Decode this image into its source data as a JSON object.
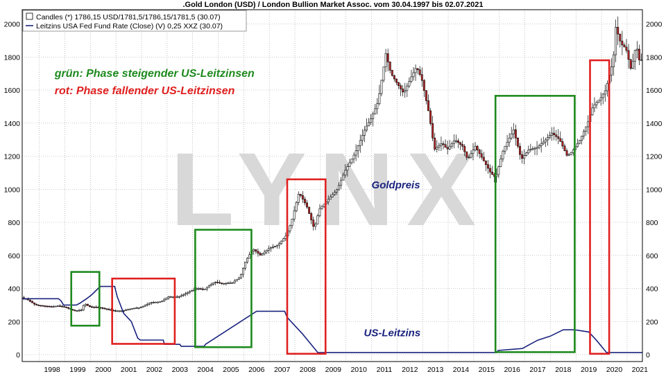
{
  "window": {
    "title": ".Gold London (USD) / London Bullion Market Assoc. vom 30.04.1997 bis 02.07.2021"
  },
  "colors": {
    "up_candle": "#ffffff",
    "down_candle": "#c0282a",
    "rate_line": "#1a237e",
    "rising_phase": "#1e8a1e",
    "falling_phase": "#e02020",
    "watermark": "#d8d8d8",
    "grid": "#999999"
  },
  "chart_data": {
    "type": "line",
    "title": ".Gold London (USD) / London Bullion Market Assoc. vom 30.04.1997 bis 02.07.2021",
    "x_range": [
      1997.33,
      2021.6
    ],
    "ylim": [
      0,
      2000
    ],
    "y_ticks": [
      0,
      200,
      400,
      600,
      800,
      1000,
      1200,
      1400,
      1600,
      1800,
      2000
    ],
    "x_ticks": [
      1998,
      1999,
      2000,
      2001,
      2002,
      2003,
      2004,
      2005,
      2006,
      2007,
      2008,
      2009,
      2010,
      2011,
      2012,
      2013,
      2014,
      2015,
      2016,
      2017,
      2018,
      2019,
      2020,
      2021
    ],
    "grid": true,
    "legend_position": "top-left",
    "legend": [
      {
        "label": "Candles (*) 1786,15 USD/1781,5/1786,15/1781,5 (30.07)",
        "icon": "candle-box"
      },
      {
        "label": "Leitzins USA Fed Fund Rate (Close) (V) 0,25 XXZ (30.07)",
        "icon": "line"
      }
    ],
    "watermark": "LYNX",
    "series": [
      {
        "name": "Candles (*) 1786,15 USD/1781,5/1786,15/1781,5 (30.07)",
        "kind": "candles",
        "points": [
          [
            1997.35,
            345
          ],
          [
            1997.6,
            330
          ],
          [
            1997.9,
            300
          ],
          [
            1998.2,
            295
          ],
          [
            1998.5,
            290
          ],
          [
            1998.8,
            295
          ],
          [
            1999.1,
            285
          ],
          [
            1999.4,
            265
          ],
          [
            1999.7,
            270
          ],
          [
            1999.8,
            310
          ],
          [
            2000.0,
            290
          ],
          [
            2000.4,
            285
          ],
          [
            2000.8,
            270
          ],
          [
            2001.0,
            265
          ],
          [
            2001.3,
            265
          ],
          [
            2001.7,
            280
          ],
          [
            2002.0,
            285
          ],
          [
            2002.4,
            315
          ],
          [
            2002.8,
            320
          ],
          [
            2003.1,
            350
          ],
          [
            2003.5,
            350
          ],
          [
            2003.9,
            380
          ],
          [
            2004.2,
            400
          ],
          [
            2004.5,
            395
          ],
          [
            2004.9,
            440
          ],
          [
            2005.2,
            430
          ],
          [
            2005.6,
            435
          ],
          [
            2005.9,
            470
          ],
          [
            2006.1,
            560
          ],
          [
            2006.4,
            640
          ],
          [
            2006.7,
            600
          ],
          [
            2007.0,
            640
          ],
          [
            2007.4,
            665
          ],
          [
            2007.7,
            720
          ],
          [
            2007.9,
            800
          ],
          [
            2008.2,
            980
          ],
          [
            2008.5,
            900
          ],
          [
            2008.8,
            760
          ],
          [
            2009.0,
            880
          ],
          [
            2009.3,
            930
          ],
          [
            2009.7,
            1000
          ],
          [
            2010.0,
            1110
          ],
          [
            2010.4,
            1220
          ],
          [
            2010.8,
            1370
          ],
          [
            2011.0,
            1420
          ],
          [
            2011.3,
            1530
          ],
          [
            2011.6,
            1820
          ],
          [
            2011.8,
            1700
          ],
          [
            2012.0,
            1650
          ],
          [
            2012.3,
            1580
          ],
          [
            2012.6,
            1680
          ],
          [
            2012.8,
            1740
          ],
          [
            2013.0,
            1670
          ],
          [
            2013.3,
            1450
          ],
          [
            2013.5,
            1240
          ],
          [
            2013.8,
            1280
          ],
          [
            2014.0,
            1240
          ],
          [
            2014.3,
            1300
          ],
          [
            2014.6,
            1260
          ],
          [
            2014.8,
            1180
          ],
          [
            2015.1,
            1260
          ],
          [
            2015.4,
            1180
          ],
          [
            2015.7,
            1100
          ],
          [
            2015.9,
            1070
          ],
          [
            2016.2,
            1240
          ],
          [
            2016.6,
            1360
          ],
          [
            2016.9,
            1180
          ],
          [
            2017.2,
            1240
          ],
          [
            2017.5,
            1250
          ],
          [
            2017.8,
            1290
          ],
          [
            2018.1,
            1340
          ],
          [
            2018.4,
            1300
          ],
          [
            2018.7,
            1200
          ],
          [
            2018.9,
            1230
          ],
          [
            2019.2,
            1300
          ],
          [
            2019.5,
            1400
          ],
          [
            2019.7,
            1500
          ],
          [
            2020.0,
            1550
          ],
          [
            2020.2,
            1600
          ],
          [
            2020.5,
            1780
          ],
          [
            2020.6,
            1980
          ],
          [
            2020.8,
            1880
          ],
          [
            2021.0,
            1850
          ],
          [
            2021.2,
            1720
          ],
          [
            2021.4,
            1880
          ],
          [
            2021.5,
            1782
          ]
        ]
      },
      {
        "name": "Leitzins USA Fed Fund Rate (Close) (V) 0,25 XXZ (30.07)",
        "kind": "step-line",
        "points": [
          [
            1997.33,
            338
          ],
          [
            1998.75,
            338
          ],
          [
            1998.85,
            325
          ],
          [
            1998.95,
            300
          ],
          [
            1999.45,
            300
          ],
          [
            1999.6,
            312
          ],
          [
            1999.85,
            338
          ],
          [
            2000.05,
            362
          ],
          [
            2000.3,
            400
          ],
          [
            2000.4,
            412
          ],
          [
            2000.95,
            412
          ],
          [
            2001.05,
            350
          ],
          [
            2001.3,
            250
          ],
          [
            2001.6,
            200
          ],
          [
            2001.85,
            100
          ],
          [
            2001.95,
            88
          ],
          [
            2002.85,
            88
          ],
          [
            2002.9,
            62
          ],
          [
            2003.5,
            62
          ],
          [
            2003.55,
            50
          ],
          [
            2004.45,
            50
          ],
          [
            2004.5,
            62
          ],
          [
            2006.5,
            262
          ],
          [
            2007.6,
            262
          ],
          [
            2007.7,
            225
          ],
          [
            2008.0,
            175
          ],
          [
            2008.3,
            125
          ],
          [
            2008.9,
            12
          ],
          [
            2015.9,
            12
          ],
          [
            2015.95,
            25
          ],
          [
            2016.9,
            37
          ],
          [
            2017.2,
            62
          ],
          [
            2017.5,
            87
          ],
          [
            2018.0,
            112
          ],
          [
            2018.5,
            150
          ],
          [
            2018.95,
            150
          ],
          [
            2019.5,
            137
          ],
          [
            2019.8,
            87
          ],
          [
            2020.2,
            12
          ],
          [
            2021.6,
            12
          ]
        ]
      }
    ],
    "phases": [
      {
        "kind": "rising",
        "x": [
          1999.25,
          2000.35
        ],
        "y": [
          175,
          500
        ]
      },
      {
        "kind": "falling",
        "x": [
          2000.85,
          2003.3
        ],
        "y": [
          65,
          460
        ]
      },
      {
        "kind": "rising",
        "x": [
          2004.1,
          2006.3
        ],
        "y": [
          45,
          755
        ]
      },
      {
        "kind": "falling",
        "x": [
          2007.7,
          2009.2
        ],
        "y": [
          5,
          1060
        ]
      },
      {
        "kind": "rising",
        "x": [
          2015.85,
          2018.95
        ],
        "y": [
          15,
          1565
        ]
      },
      {
        "kind": "falling",
        "x": [
          2019.55,
          2020.3
        ],
        "y": [
          5,
          1780
        ]
      }
    ],
    "annotations": [
      {
        "text": "grün: Phase steigender US-Leitzinsen",
        "x": 1998.6,
        "y": 1680,
        "color": "rising"
      },
      {
        "text": "rot: Phase fallender US-Leitzinsen",
        "x": 1998.6,
        "y": 1575,
        "color": "falling"
      },
      {
        "text": "Goldpreis",
        "x": 2011.0,
        "y": 1005,
        "color": "series"
      },
      {
        "text": "US-Leitzins",
        "x": 2010.7,
        "y": 110,
        "color": "series"
      }
    ]
  }
}
